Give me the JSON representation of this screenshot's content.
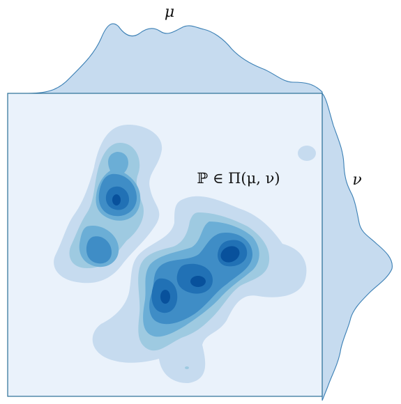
{
  "labels": {
    "mu": "μ",
    "nu": "ν",
    "coupling": "ℙ ∈ Π(μ, ν)"
  },
  "colors": {
    "frame": "#2a6f97",
    "background": "#eaf2fb",
    "marginal_fill": "#c6dbef",
    "marginal_stroke": "#3a7fb4",
    "level_1": "#c6dbef",
    "level_2": "#9ecae1",
    "level_3": "#6baed6",
    "level_4": "#3f8dc6",
    "level_5": "#2171b5",
    "level_6": "#08519c"
  }
}
